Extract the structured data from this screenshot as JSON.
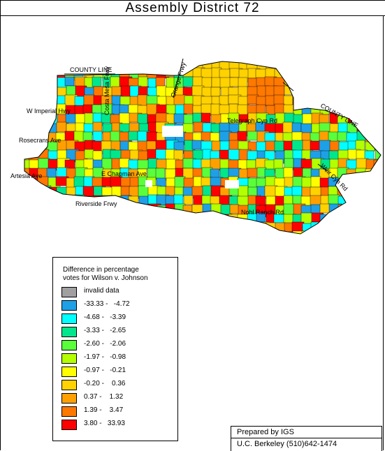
{
  "title": "Assembly District 72",
  "map_labels": {
    "county_line_1": "COUNTY LINE",
    "county_line_2": "COUNTY LINE",
    "costa_mesa_frwy": "Costa Mesa Frwy",
    "orange_frwy": "Orange Frwy",
    "w_imperial_hwy": "W Imperial Hwy",
    "telegraph_cyn": "Telegraph Cyn Rd",
    "rosecrans": "Rosecrans Ave",
    "artesia": "Artesia Ave",
    "chapman": "E Chapman Ave",
    "riverside_frwy": "Riverside Frwy",
    "weir_cyn": "Weir Cyn Rd",
    "nohl_ranch": "Nohl Ranch Rd"
  },
  "legend": {
    "title_line1": "Difference in percentage",
    "title_line2": "votes for Wilson v. Johnson",
    "items": [
      {
        "label": "invalid data",
        "color": "#a0a0a0"
      },
      {
        "label": "-33.33 -   -4.72",
        "color": "#1ea0e6"
      },
      {
        "label": "-4.68 -   -3.39",
        "color": "#00ffff"
      },
      {
        "label": "-3.33 -   -2.65",
        "color": "#00e68c"
      },
      {
        "label": "-2.60 -   -2.06",
        "color": "#5aff3c"
      },
      {
        "label": "-1.97 -   -0.98",
        "color": "#b4ff00"
      },
      {
        "label": "-0.97 -   -0.21",
        "color": "#ffff00"
      },
      {
        "label": "-0.20 -    0.36",
        "color": "#ffd200"
      },
      {
        "label": "0.37 -    1.32",
        "color": "#ffa000"
      },
      {
        "label": "1.39 -    3.47",
        "color": "#ff7800"
      },
      {
        "label": "3.80 -   33.93",
        "color": "#ff0000"
      }
    ]
  },
  "credit": {
    "line1": "Prepared by IGS",
    "line2": "U.C. Berkeley  (510)642-1474"
  }
}
